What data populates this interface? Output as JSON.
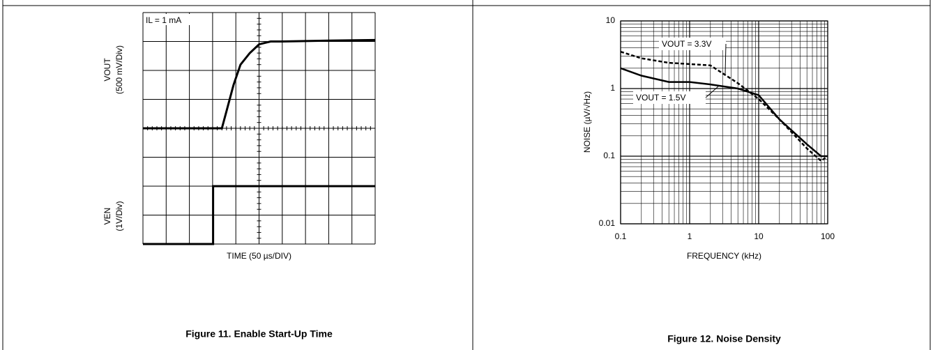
{
  "chart_data": [
    {
      "type": "line",
      "title": "Figure 11. Enable Start-Up Time",
      "x_label": "TIME (50 µs/DIV)",
      "annotation": "IL = 1 mA",
      "xlim": [
        0,
        10
      ],
      "ylim": [
        0,
        8
      ],
      "grid": true,
      "series": [
        {
          "name": "VOUT",
          "scale": "(500 mV/Div)",
          "color": "#000000",
          "x": [
            0,
            3.4,
            3.6,
            3.9,
            4.2,
            4.6,
            5,
            5.5,
            6,
            8,
            10
          ],
          "values": [
            4.0,
            4.0,
            4.6,
            5.5,
            6.2,
            6.6,
            6.9,
            7.0,
            7.0,
            7.03,
            7.05
          ]
        },
        {
          "name": "VEN",
          "scale": "(1V/Div)",
          "color": "#000000",
          "x": [
            0,
            3.02,
            3.02,
            10
          ],
          "values": [
            0,
            0,
            2.0,
            2.0
          ]
        }
      ]
    },
    {
      "type": "line",
      "title": "Figure 12. Noise Density",
      "x_label": "FREQUENCY (kHz)",
      "y_label": "NOISE (µV/√Hz)",
      "log_x": true,
      "log_y": true,
      "grid": true,
      "xlim": [
        0.1,
        100
      ],
      "ylim": [
        0.01,
        10
      ],
      "xticks": [
        0.1,
        1,
        10,
        100
      ],
      "yticks": [
        0.01,
        0.1,
        1,
        10
      ],
      "x": [
        0.1,
        0.2,
        0.5,
        1,
        2,
        5,
        10,
        20,
        50,
        80,
        100
      ],
      "series": [
        {
          "name": "VOUT = 3.3V",
          "color": "#000000",
          "dashed": true,
          "values": [
            3.5,
            2.8,
            2.4,
            2.3,
            2.2,
            1.2,
            0.7,
            0.35,
            0.13,
            0.085,
            0.1
          ]
        },
        {
          "name": "VOUT = 1.5V",
          "color": "#000000",
          "dashed": false,
          "values": [
            2.0,
            1.55,
            1.25,
            1.25,
            1.15,
            1.0,
            0.8,
            0.35,
            0.15,
            0.1,
            0.1
          ]
        }
      ]
    }
  ]
}
